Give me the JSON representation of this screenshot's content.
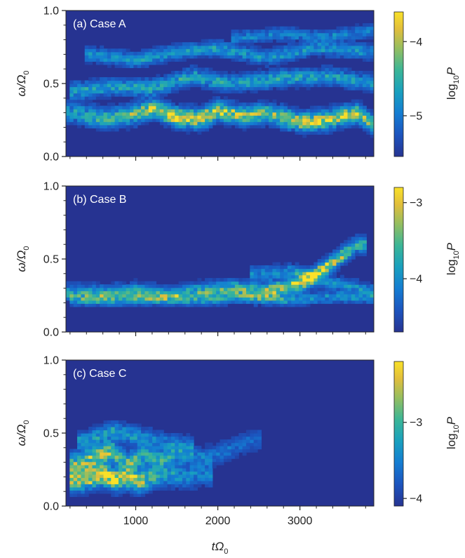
{
  "chart_data": [
    {
      "type": "heatmap",
      "panel_label": "(a) Case A",
      "ylabel_main": "ω/Ω",
      "ylabel_sub": "0",
      "colorbar_label_main": "log",
      "colorbar_label_sub": "10",
      "colorbar_label_var": "P",
      "xlim": [
        150,
        3900
      ],
      "ylim": [
        0,
        1
      ],
      "clim": [
        -5.55,
        -3.6
      ],
      "x_ticks": [
        1000,
        2000,
        3000
      ],
      "y_ticks": [
        "0.0",
        "0.5",
        "1.0"
      ],
      "colorbar_ticks": [
        -4,
        -5
      ],
      "colorbar_tick_labels": [
        "−4",
        "−5"
      ],
      "ridges": [
        {
          "x": [
            250,
            600,
            900,
            1200,
            1500,
            1800,
            2000,
            2300,
            2600,
            3000,
            3300,
            3700,
            3900
          ],
          "y": [
            0.3,
            0.26,
            0.28,
            0.33,
            0.27,
            0.26,
            0.32,
            0.28,
            0.3,
            0.24,
            0.25,
            0.3,
            0.22
          ],
          "amp": [
            0.45,
            0.55,
            0.6,
            0.75,
            0.95,
            0.9,
            0.9,
            0.7,
            0.65,
            0.8,
            0.85,
            0.75,
            0.6
          ],
          "width": 0.04
        },
        {
          "x": [
            300,
            700,
            1200,
            1700,
            2200,
            2800,
            3400,
            3900
          ],
          "y": [
            0.45,
            0.48,
            0.47,
            0.55,
            0.5,
            0.54,
            0.55,
            0.5
          ],
          "amp": [
            0.4,
            0.4,
            0.45,
            0.45,
            0.4,
            0.45,
            0.4,
            0.35
          ],
          "width": 0.035
        },
        {
          "x": [
            500,
            1000,
            1500,
            2000,
            2600,
            3200,
            3800
          ],
          "y": [
            0.7,
            0.66,
            0.72,
            0.74,
            0.68,
            0.75,
            0.72
          ],
          "amp": [
            0.35,
            0.38,
            0.35,
            0.4,
            0.35,
            0.38,
            0.35
          ],
          "width": 0.03
        },
        {
          "x": [
            2300,
            2800,
            3300,
            3800
          ],
          "y": [
            0.82,
            0.84,
            0.82,
            0.86
          ],
          "amp": [
            0.3,
            0.3,
            0.3,
            0.28
          ],
          "width": 0.025
        }
      ],
      "noise_level": 0.1,
      "seed": 11
    },
    {
      "type": "heatmap",
      "panel_label": "(b) Case B",
      "ylabel_main": "ω/Ω",
      "ylabel_sub": "0",
      "colorbar_label_main": "log",
      "colorbar_label_sub": "10",
      "colorbar_label_var": "P",
      "xlim": [
        150,
        3900
      ],
      "ylim": [
        0,
        1
      ],
      "clim": [
        -4.7,
        -2.8
      ],
      "x_ticks": [
        1000,
        2000,
        3000
      ],
      "y_ticks": [
        "0.0",
        "0.5",
        "1.0"
      ],
      "colorbar_ticks": [
        -3,
        -4
      ],
      "colorbar_tick_labels": [
        "−3",
        "−4"
      ],
      "ridges": [
        {
          "x": [
            250,
            600,
            1000,
            1400,
            1800,
            2200,
            2500,
            2800,
            3100,
            3300,
            3500,
            3700
          ],
          "y": [
            0.27,
            0.26,
            0.28,
            0.25,
            0.28,
            0.3,
            0.28,
            0.3,
            0.36,
            0.44,
            0.52,
            0.6
          ],
          "amp": [
            0.45,
            0.5,
            0.5,
            0.5,
            0.55,
            0.6,
            0.65,
            0.85,
            1.0,
            0.95,
            0.75,
            0.55
          ],
          "width": 0.035
        },
        {
          "x": [
            300,
            800,
            1300,
            1800,
            2300,
            2800,
            3300,
            3800
          ],
          "y": [
            0.22,
            0.22,
            0.23,
            0.22,
            0.24,
            0.22,
            0.24,
            0.24
          ],
          "amp": [
            0.35,
            0.35,
            0.35,
            0.35,
            0.35,
            0.4,
            0.35,
            0.35
          ],
          "width": 0.025
        },
        {
          "x": [
            2500,
            2900,
            3300,
            3700,
            3900
          ],
          "y": [
            0.4,
            0.42,
            0.35,
            0.3,
            0.28
          ],
          "amp": [
            0.3,
            0.35,
            0.35,
            0.35,
            0.3
          ],
          "width": 0.03
        }
      ],
      "noise_level": 0.08,
      "seed": 23
    },
    {
      "type": "heatmap",
      "panel_label": "(c) Case C",
      "ylabel_main": "ω/Ω",
      "ylabel_sub": "0",
      "colorbar_label_main": "log",
      "colorbar_label_sub": "10",
      "colorbar_label_var": "P",
      "xlim": [
        150,
        3900
      ],
      "ylim": [
        0,
        1
      ],
      "clim": [
        -4.1,
        -2.2
      ],
      "x_ticks": [
        1000,
        2000,
        3000
      ],
      "x_tick_labels": [
        "1000",
        "2000",
        "3000"
      ],
      "y_ticks": [
        "0.0",
        "0.5",
        "1.0"
      ],
      "colorbar_ticks": [
        -3,
        -4
      ],
      "colorbar_tick_labels": [
        "−3",
        "−4"
      ],
      "xlabel_main": "tΩ",
      "xlabel_sub": "0",
      "ridges": [
        {
          "x": [
            300,
            450,
            600,
            750,
            900,
            1050,
            1200,
            1400,
            1600,
            1800
          ],
          "y": [
            0.18,
            0.2,
            0.22,
            0.18,
            0.2,
            0.17,
            0.2,
            0.22,
            0.2,
            0.22
          ],
          "amp": [
            0.75,
            0.95,
            1.0,
            0.95,
            0.85,
            0.8,
            0.6,
            0.45,
            0.35,
            0.3
          ],
          "width": 0.05
        },
        {
          "x": [
            300,
            500,
            700,
            900,
            1100,
            1300,
            1500,
            1800,
            2100,
            2400
          ],
          "y": [
            0.3,
            0.34,
            0.38,
            0.3,
            0.35,
            0.32,
            0.36,
            0.33,
            0.38,
            0.45
          ],
          "amp": [
            0.6,
            0.8,
            0.75,
            0.6,
            0.55,
            0.45,
            0.4,
            0.3,
            0.25,
            0.2
          ],
          "width": 0.045
        },
        {
          "x": [
            400,
            700,
            1000,
            1300,
            1600
          ],
          "y": [
            0.45,
            0.52,
            0.48,
            0.45,
            0.42
          ],
          "amp": [
            0.4,
            0.45,
            0.4,
            0.3,
            0.25
          ],
          "width": 0.04
        }
      ],
      "noise_level": 0.05,
      "seed": 37
    }
  ]
}
